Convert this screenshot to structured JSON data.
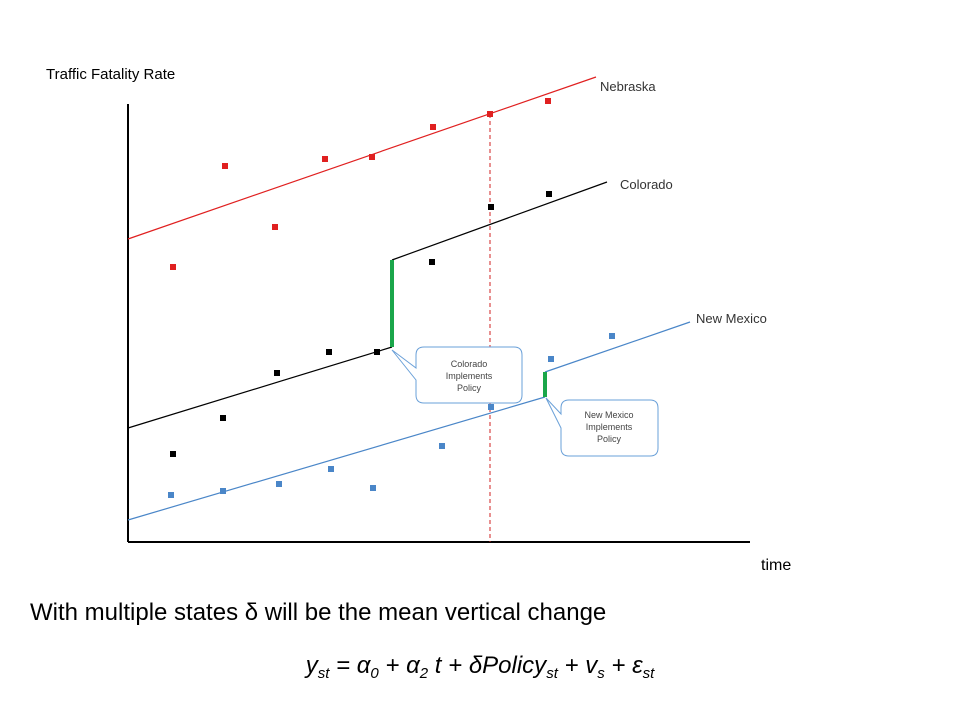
{
  "slide": {
    "caption": "With multiple states δ will be the mean vertical change",
    "formula": {
      "y": "y",
      "y_sub": "st",
      "eq": " = α",
      "a0_sub": "0",
      "plus1": " + α",
      "a2_sub": "2",
      "t_term": " t + δPolicy",
      "policy_sub": "st",
      "plus2": " + v",
      "v_sub": "s",
      "plus3": " + ε",
      "e_sub": "st"
    }
  },
  "chart_data": {
    "type": "scatter",
    "ylabel": "Traffic Fatality Rate",
    "xlabel": "time",
    "series": [
      {
        "name": "Nebraska",
        "color": "#e02020",
        "points": [
          [
            173,
            267
          ],
          [
            225,
            166
          ],
          [
            275,
            227
          ],
          [
            325,
            159
          ],
          [
            372,
            157
          ],
          [
            433,
            127
          ],
          [
            490,
            114
          ],
          [
            548,
            101
          ]
        ]
      },
      {
        "name": "Colorado",
        "color": "#000000",
        "points": [
          [
            173,
            454
          ],
          [
            223,
            418
          ],
          [
            277,
            373
          ],
          [
            329,
            352
          ],
          [
            377,
            352
          ],
          [
            432,
            262
          ],
          [
            491,
            207
          ],
          [
            549,
            194
          ]
        ]
      },
      {
        "name": "New Mexico",
        "color": "#4a86c8",
        "points": [
          [
            171,
            495
          ],
          [
            223,
            491
          ],
          [
            279,
            484
          ],
          [
            331,
            469
          ],
          [
            373,
            488
          ],
          [
            442,
            446
          ],
          [
            491,
            407
          ],
          [
            551,
            359
          ],
          [
            612,
            336
          ]
        ]
      }
    ],
    "callouts": [
      {
        "name": "colorado-callout",
        "lines": [
          "Colorado",
          "Implements",
          "Policy"
        ]
      },
      {
        "name": "new-mexico-callout",
        "lines": [
          "New Mexico",
          "Implements",
          "Policy"
        ]
      }
    ]
  }
}
